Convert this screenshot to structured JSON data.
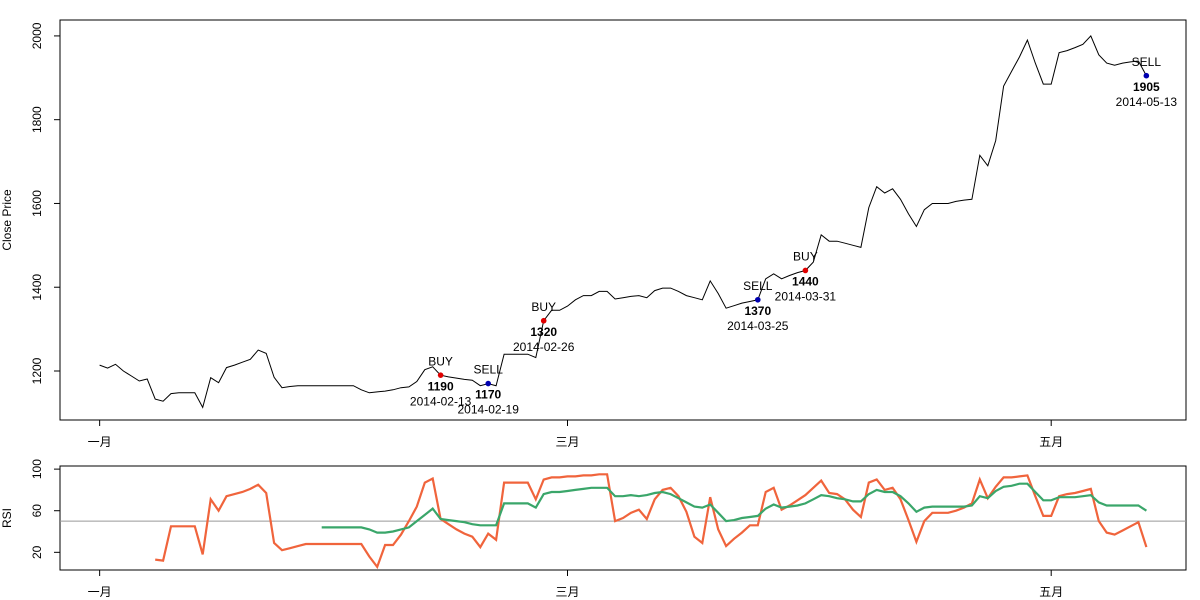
{
  "chart_data": [
    {
      "type": "line",
      "ylabel": "Close Price",
      "color": "#000000",
      "xlim": [
        "2013-12-27",
        "2014-05-18"
      ],
      "ylim": [
        1083,
        2038
      ],
      "xticks": [
        {
          "value": "2014-01-01",
          "label": "一月"
        },
        {
          "value": "2014-03-01",
          "label": "三月"
        },
        {
          "value": "2014-05-01",
          "label": "五月"
        }
      ],
      "yticks": [
        1200,
        1400,
        1600,
        1800,
        2000
      ],
      "x": [
        "2014-01-01",
        "2014-01-02",
        "2014-01-03",
        "2014-01-04",
        "2014-01-05",
        "2014-01-06",
        "2014-01-07",
        "2014-01-08",
        "2014-01-09",
        "2014-01-10",
        "2014-01-11",
        "2014-01-12",
        "2014-01-13",
        "2014-01-14",
        "2014-01-15",
        "2014-01-16",
        "2014-01-17",
        "2014-01-18",
        "2014-01-19",
        "2014-01-20",
        "2014-01-21",
        "2014-01-22",
        "2014-01-23",
        "2014-01-24",
        "2014-01-25",
        "2014-01-26",
        "2014-01-27",
        "2014-01-28",
        "2014-01-29",
        "2014-01-30",
        "2014-01-31",
        "2014-02-01",
        "2014-02-02",
        "2014-02-03",
        "2014-02-04",
        "2014-02-05",
        "2014-02-06",
        "2014-02-07",
        "2014-02-08",
        "2014-02-09",
        "2014-02-10",
        "2014-02-11",
        "2014-02-12",
        "2014-02-13",
        "2014-02-14",
        "2014-02-15",
        "2014-02-16",
        "2014-02-17",
        "2014-02-18",
        "2014-02-19",
        "2014-02-20",
        "2014-02-21",
        "2014-02-22",
        "2014-02-23",
        "2014-02-24",
        "2014-02-25",
        "2014-02-26",
        "2014-02-27",
        "2014-02-28",
        "2014-03-01",
        "2014-03-02",
        "2014-03-03",
        "2014-03-04",
        "2014-03-05",
        "2014-03-06",
        "2014-03-07",
        "2014-03-08",
        "2014-03-09",
        "2014-03-10",
        "2014-03-11",
        "2014-03-12",
        "2014-03-13",
        "2014-03-14",
        "2014-03-15",
        "2014-03-16",
        "2014-03-17",
        "2014-03-18",
        "2014-03-19",
        "2014-03-20",
        "2014-03-21",
        "2014-03-22",
        "2014-03-23",
        "2014-03-24",
        "2014-03-25",
        "2014-03-26",
        "2014-03-27",
        "2014-03-28",
        "2014-03-29",
        "2014-03-30",
        "2014-03-31",
        "2014-04-01",
        "2014-04-02",
        "2014-04-03",
        "2014-04-04",
        "2014-04-05",
        "2014-04-06",
        "2014-04-07",
        "2014-04-08",
        "2014-04-09",
        "2014-04-10",
        "2014-04-11",
        "2014-04-12",
        "2014-04-13",
        "2014-04-14",
        "2014-04-15",
        "2014-04-16",
        "2014-04-17",
        "2014-04-18",
        "2014-04-19",
        "2014-04-20",
        "2014-04-21",
        "2014-04-22",
        "2014-04-23",
        "2014-04-24",
        "2014-04-25",
        "2014-04-26",
        "2014-04-27",
        "2014-04-28",
        "2014-04-29",
        "2014-04-30",
        "2014-05-01",
        "2014-05-02",
        "2014-05-03",
        "2014-05-04",
        "2014-05-05",
        "2014-05-06",
        "2014-05-07",
        "2014-05-08",
        "2014-05-09",
        "2014-05-10",
        "2014-05-11",
        "2014-05-12",
        "2014-05-13"
      ],
      "values": [
        1214,
        1207,
        1216,
        1200,
        1188,
        1176,
        1181,
        1133,
        1128,
        1146,
        1148,
        1148,
        1148,
        1113,
        1184,
        1172,
        1208,
        1214,
        1221,
        1228,
        1250,
        1242,
        1185,
        1160,
        1163,
        1165,
        1165,
        1165,
        1165,
        1165,
        1165,
        1165,
        1165,
        1155,
        1148,
        1150,
        1152,
        1155,
        1160,
        1162,
        1175,
        1203,
        1210,
        1190,
        1186,
        1183,
        1180,
        1178,
        1165,
        1170,
        1165,
        1240,
        1240,
        1240,
        1240,
        1232,
        1320,
        1345,
        1345,
        1355,
        1370,
        1380,
        1380,
        1390,
        1390,
        1372,
        1375,
        1378,
        1380,
        1375,
        1392,
        1398,
        1398,
        1390,
        1380,
        1375,
        1370,
        1415,
        1385,
        1350,
        1356,
        1362,
        1366,
        1370,
        1420,
        1432,
        1420,
        1428,
        1435,
        1440,
        1460,
        1525,
        1510,
        1510,
        1505,
        1500,
        1495,
        1590,
        1640,
        1625,
        1635,
        1610,
        1575,
        1545,
        1585,
        1600,
        1600,
        1600,
        1605,
        1608,
        1610,
        1715,
        1690,
        1750,
        1880,
        1915,
        1950,
        1990,
        1935,
        1885,
        1885,
        1960,
        1965,
        1972,
        1980,
        2000,
        1955,
        1935,
        1930,
        1935,
        1938,
        1940,
        1905
      ],
      "annotations": [
        {
          "label": "BUY",
          "value": 1190,
          "date": "2014-02-13",
          "color": "#e00000"
        },
        {
          "label": "SELL",
          "value": 1170,
          "date": "2014-02-19",
          "color": "#0000b0"
        },
        {
          "label": "BUY",
          "value": 1320,
          "date": "2014-02-26",
          "color": "#e00000"
        },
        {
          "label": "SELL",
          "value": 1370,
          "date": "2014-03-25",
          "color": "#0000b0"
        },
        {
          "label": "BUY",
          "value": 1440,
          "date": "2014-03-31",
          "color": "#e00000"
        },
        {
          "label": "SELL",
          "value": 1905,
          "date": "2014-05-13",
          "color": "#0000b0"
        }
      ]
    },
    {
      "type": "line",
      "ylabel": "RSI",
      "xlim": [
        "2013-12-27",
        "2014-05-18"
      ],
      "ylim": [
        3,
        103
      ],
      "xticks": [
        {
          "value": "2014-01-01",
          "label": "一月"
        },
        {
          "value": "2014-03-01",
          "label": "三月"
        },
        {
          "value": "2014-05-01",
          "label": "五月"
        }
      ],
      "yticks": [
        20,
        60,
        100
      ],
      "hline": 50,
      "hline_color": "#999999",
      "x": [
        "2014-01-01",
        "2014-01-02",
        "2014-01-03",
        "2014-01-04",
        "2014-01-05",
        "2014-01-06",
        "2014-01-07",
        "2014-01-08",
        "2014-01-09",
        "2014-01-10",
        "2014-01-11",
        "2014-01-12",
        "2014-01-13",
        "2014-01-14",
        "2014-01-15",
        "2014-01-16",
        "2014-01-17",
        "2014-01-18",
        "2014-01-19",
        "2014-01-20",
        "2014-01-21",
        "2014-01-22",
        "2014-01-23",
        "2014-01-24",
        "2014-01-25",
        "2014-01-26",
        "2014-01-27",
        "2014-01-28",
        "2014-01-29",
        "2014-01-30",
        "2014-01-31",
        "2014-02-01",
        "2014-02-02",
        "2014-02-03",
        "2014-02-04",
        "2014-02-05",
        "2014-02-06",
        "2014-02-07",
        "2014-02-08",
        "2014-02-09",
        "2014-02-10",
        "2014-02-11",
        "2014-02-12",
        "2014-02-13",
        "2014-02-14",
        "2014-02-15",
        "2014-02-16",
        "2014-02-17",
        "2014-02-18",
        "2014-02-19",
        "2014-02-20",
        "2014-02-21",
        "2014-02-22",
        "2014-02-23",
        "2014-02-24",
        "2014-02-25",
        "2014-02-26",
        "2014-02-27",
        "2014-02-28",
        "2014-03-01",
        "2014-03-02",
        "2014-03-03",
        "2014-03-04",
        "2014-03-05",
        "2014-03-06",
        "2014-03-07",
        "2014-03-08",
        "2014-03-09",
        "2014-03-10",
        "2014-03-11",
        "2014-03-12",
        "2014-03-13",
        "2014-03-14",
        "2014-03-15",
        "2014-03-16",
        "2014-03-17",
        "2014-03-18",
        "2014-03-19",
        "2014-03-20",
        "2014-03-21",
        "2014-03-22",
        "2014-03-23",
        "2014-03-24",
        "2014-03-25",
        "2014-03-26",
        "2014-03-27",
        "2014-03-28",
        "2014-03-29",
        "2014-03-30",
        "2014-03-31",
        "2014-04-01",
        "2014-04-02",
        "2014-04-03",
        "2014-04-04",
        "2014-04-05",
        "2014-04-06",
        "2014-04-07",
        "2014-04-08",
        "2014-04-09",
        "2014-04-10",
        "2014-04-11",
        "2014-04-12",
        "2014-04-13",
        "2014-04-14",
        "2014-04-15",
        "2014-04-16",
        "2014-04-17",
        "2014-04-18",
        "2014-04-19",
        "2014-04-20",
        "2014-04-21",
        "2014-04-22",
        "2014-04-23",
        "2014-04-24",
        "2014-04-25",
        "2014-04-26",
        "2014-04-27",
        "2014-04-28",
        "2014-04-29",
        "2014-04-30",
        "2014-05-01",
        "2014-05-02",
        "2014-05-03",
        "2014-05-04",
        "2014-05-05",
        "2014-05-06",
        "2014-05-07",
        "2014-05-08",
        "2014-05-09",
        "2014-05-10",
        "2014-05-11",
        "2014-05-12",
        "2014-05-13"
      ],
      "series": [
        {
          "color": "#f0643c",
          "values": [
            null,
            null,
            null,
            null,
            null,
            null,
            null,
            13,
            12,
            45,
            45,
            45,
            45,
            18,
            71,
            60,
            74,
            76,
            78,
            81,
            85,
            77,
            29,
            22,
            24,
            26,
            28,
            28,
            28,
            28,
            28,
            28,
            28,
            28,
            16,
            6,
            27,
            27,
            37,
            50,
            64,
            87,
            91,
            52,
            47,
            42,
            38,
            35,
            25,
            38,
            32,
            87,
            87,
            87,
            87,
            71,
            90,
            92,
            92,
            93,
            93,
            94,
            94,
            95,
            95,
            50,
            53,
            58,
            61,
            52,
            71,
            80,
            82,
            74,
            59,
            35,
            29,
            73,
            42,
            26,
            33,
            39,
            46,
            46,
            78,
            82,
            61,
            65,
            70,
            75,
            82,
            89,
            77,
            76,
            71,
            61,
            54,
            87,
            90,
            80,
            82,
            71,
            51,
            30,
            50,
            58,
            58,
            58,
            60,
            63,
            67,
            90,
            72,
            83,
            92,
            92,
            93,
            94,
            74,
            55,
            55,
            74,
            76,
            77,
            79,
            81,
            50,
            39,
            37,
            41,
            45,
            49,
            25
          ]
        },
        {
          "color": "#3aa66a",
          "values": [
            null,
            null,
            null,
            null,
            null,
            null,
            null,
            null,
            null,
            null,
            null,
            null,
            null,
            null,
            null,
            null,
            null,
            null,
            null,
            null,
            null,
            null,
            null,
            null,
            null,
            null,
            null,
            null,
            44,
            44,
            44,
            44,
            44,
            44,
            42,
            39,
            39,
            40,
            42,
            44,
            50,
            56,
            62,
            52,
            51,
            50,
            49,
            47,
            46,
            46,
            46,
            67,
            67,
            67,
            67,
            63,
            76,
            78,
            78,
            79,
            80,
            81,
            82,
            82,
            82,
            74,
            74,
            75,
            74,
            75,
            77,
            78,
            76,
            72,
            68,
            64,
            63,
            66,
            58,
            50,
            51,
            53,
            54,
            55,
            62,
            66,
            63,
            64,
            65,
            67,
            71,
            75,
            74,
            72,
            71,
            69,
            69,
            76,
            80,
            78,
            78,
            74,
            67,
            59,
            63,
            64,
            64,
            64,
            64,
            64,
            65,
            74,
            72,
            79,
            83,
            84,
            86,
            86,
            78,
            70,
            70,
            73,
            73,
            73,
            74,
            75,
            68,
            65,
            65,
            65,
            65,
            65,
            60
          ]
        }
      ]
    }
  ]
}
